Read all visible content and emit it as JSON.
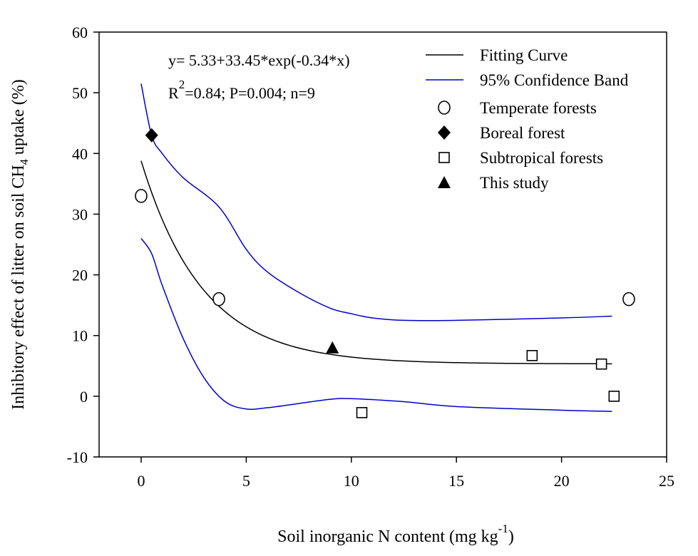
{
  "chart_data": {
    "type": "scatter",
    "xlabel": {
      "text": "Soil inorganic N content (mg kg",
      "sup": "-1",
      "tail": ")"
    },
    "ylabel": {
      "text": "Inhibitory effect of litter on soil CH",
      "sub": "4",
      "tail": " uptake (%)"
    },
    "xlim": [
      -2,
      25
    ],
    "ylim": [
      -10,
      60
    ],
    "xticks": [
      0,
      5,
      10,
      15,
      20,
      25
    ],
    "yticks": [
      -10,
      0,
      10,
      20,
      30,
      40,
      50,
      60
    ],
    "grid": false,
    "legend_position": "top-right",
    "annotation": {
      "equation": "y= 5.33+33.45*exp(-0.34*x)",
      "r_prefix": "R",
      "r_sup": "2",
      "stats": "=0.84; P=0.004; n=9"
    },
    "fit": {
      "name": "Fitting Curve",
      "a": 5.33,
      "b": 33.45,
      "k": -0.34,
      "x_range": [
        0,
        22.4
      ],
      "color": "#000000"
    },
    "confidence_band": {
      "name": "95% Confidence Band",
      "color": "#0000cc",
      "upper": [
        [
          0,
          51.5
        ],
        [
          0.5,
          43
        ],
        [
          1,
          40
        ],
        [
          2,
          36
        ],
        [
          3.7,
          31.2
        ],
        [
          5,
          24.2
        ],
        [
          6,
          20.5
        ],
        [
          7.5,
          17.1
        ],
        [
          9,
          14.5
        ],
        [
          10,
          13.6
        ],
        [
          11,
          12.9
        ],
        [
          12.5,
          12.5
        ],
        [
          15,
          12.5
        ],
        [
          20,
          12.9
        ],
        [
          22.4,
          13.2
        ]
      ],
      "lower": [
        [
          0,
          26
        ],
        [
          0.5,
          23.5
        ],
        [
          1,
          18.3
        ],
        [
          2,
          9.5
        ],
        [
          3,
          3
        ],
        [
          4,
          -0.9
        ],
        [
          5,
          -2.1
        ],
        [
          6,
          -1.9
        ],
        [
          7.5,
          -1.2
        ],
        [
          9,
          -0.5
        ],
        [
          10,
          -0.4
        ],
        [
          12.5,
          -0.9
        ],
        [
          15,
          -1.7
        ],
        [
          20,
          -2.3
        ],
        [
          22.4,
          -2.5
        ]
      ]
    },
    "series": [
      {
        "name": "Temperate forests",
        "marker": "circle-open",
        "points": [
          [
            0,
            33
          ],
          [
            3.7,
            16
          ],
          [
            23.2,
            16
          ]
        ]
      },
      {
        "name": "Boreal forest",
        "marker": "diamond-filled",
        "points": [
          [
            0.5,
            43
          ]
        ]
      },
      {
        "name": "Subtropical forests",
        "marker": "square-open",
        "points": [
          [
            10.5,
            -2.7
          ],
          [
            18.6,
            6.7
          ],
          [
            21.9,
            5.3
          ],
          [
            22.5,
            0
          ]
        ]
      },
      {
        "name": "This study",
        "marker": "triangle-filled",
        "points": [
          [
            9.1,
            8
          ]
        ]
      }
    ]
  }
}
